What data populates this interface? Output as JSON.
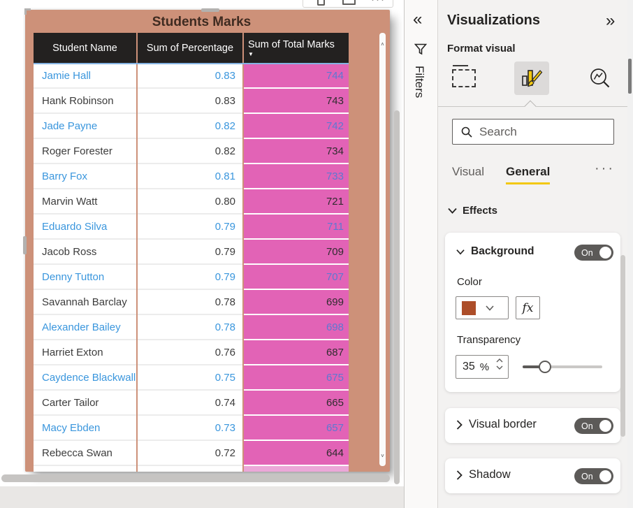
{
  "icons": {
    "collapse": "«",
    "expand": "»",
    "more": "···",
    "sort_desc": "▼",
    "scroll_up": "˄",
    "scroll_down": "˅"
  },
  "colors": {
    "visual_background": "#cd9179",
    "bar": "#e263b6",
    "link": "#3a96dd",
    "accent": "#f2c811",
    "swatch": "#ad4e29"
  },
  "visual": {
    "title": "Students Marks",
    "columns": [
      "Student Name",
      "Sum of Percentage",
      "Sum of Total Marks"
    ],
    "sorted_column": "Sum of Total Marks",
    "rows": [
      {
        "name": "Jamie Hall",
        "pct": "0.83",
        "marks": "744",
        "link": true
      },
      {
        "name": "Hank Robinson",
        "pct": "0.83",
        "marks": "743",
        "link": false
      },
      {
        "name": "Jade Payne",
        "pct": "0.82",
        "marks": "742",
        "link": true
      },
      {
        "name": "Roger Forester",
        "pct": "0.82",
        "marks": "734",
        "link": false
      },
      {
        "name": "Barry Fox",
        "pct": "0.81",
        "marks": "733",
        "link": true
      },
      {
        "name": "Marvin Watt",
        "pct": "0.80",
        "marks": "721",
        "link": false
      },
      {
        "name": "Eduardo Silva",
        "pct": "0.79",
        "marks": "711",
        "link": true
      },
      {
        "name": "Jacob Ross",
        "pct": "0.79",
        "marks": "709",
        "link": false
      },
      {
        "name": "Denny Tutton",
        "pct": "0.79",
        "marks": "707",
        "link": true
      },
      {
        "name": "Savannah Barclay",
        "pct": "0.78",
        "marks": "699",
        "link": false
      },
      {
        "name": "Alexander Bailey",
        "pct": "0.78",
        "marks": "698",
        "link": true
      },
      {
        "name": "Harriet Exton",
        "pct": "0.76",
        "marks": "687",
        "link": false
      },
      {
        "name": "Caydence Blackwall",
        "pct": "0.75",
        "marks": "675",
        "link": true
      },
      {
        "name": "Carter Tailor",
        "pct": "0.74",
        "marks": "665",
        "link": false
      },
      {
        "name": "Macy Ebden",
        "pct": "0.73",
        "marks": "657",
        "link": true
      },
      {
        "name": "Rebecca Swan",
        "pct": "0.72",
        "marks": "644",
        "link": false
      }
    ]
  },
  "filters_pane": {
    "label": "Filters"
  },
  "visualizations_pane": {
    "title": "Visualizations",
    "subtitle": "Format visual",
    "search_placeholder": "Search",
    "tabs": {
      "visual": "Visual",
      "general": "General"
    },
    "effects_section": "Effects",
    "background_card": {
      "label": "Background",
      "toggle": "On",
      "color_label": "Color",
      "color_value": "#ad4e29",
      "fx_label": "fx",
      "transparency_label": "Transparency",
      "transparency_value": "35",
      "transparency_unit": "%"
    },
    "visual_border_card": {
      "label": "Visual border",
      "toggle": "On"
    },
    "shadow_card": {
      "label": "Shadow",
      "toggle": "On"
    }
  }
}
